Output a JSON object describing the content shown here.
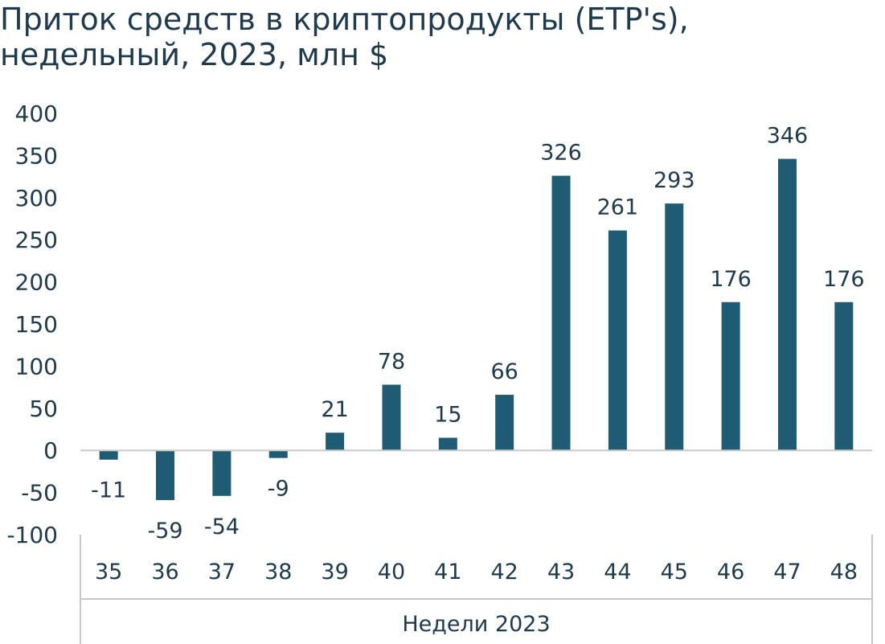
{
  "chart_data": {
    "type": "bar",
    "title_line1": "Приток средств в криптопродукты (ETP's),",
    "title_line2": "недельный, 2023, млн $",
    "xlabel": "Недели 2023",
    "ylabel": "",
    "ylim": [
      -100,
      400
    ],
    "yticks": [
      400,
      350,
      300,
      250,
      200,
      150,
      100,
      50,
      0,
      -50,
      -100
    ],
    "categories": [
      "35",
      "36",
      "37",
      "38",
      "39",
      "40",
      "41",
      "42",
      "43",
      "44",
      "45",
      "46",
      "47",
      "48"
    ],
    "values": [
      -11,
      -59,
      -54,
      -9,
      21,
      78,
      15,
      66,
      326,
      261,
      293,
      176,
      346,
      176
    ],
    "bar_color": "#1f5c73",
    "axis_color": "#c8c8c8",
    "text_color": "#1e3a4c"
  }
}
